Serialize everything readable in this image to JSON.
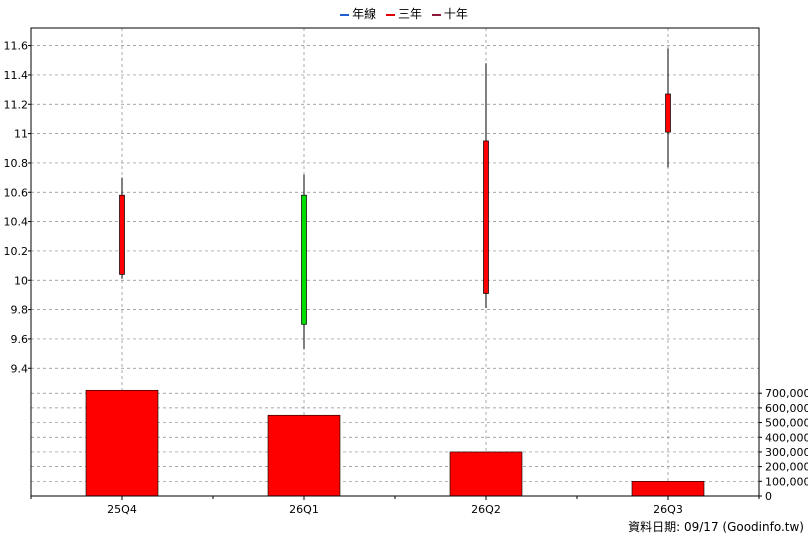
{
  "legend": [
    {
      "label": "年線",
      "color": "#1f5fd0"
    },
    {
      "label": "三年",
      "color": "#e00000"
    },
    {
      "label": "十年",
      "color": "#8b1a3a"
    }
  ],
  "source": "資料日期: 09/17  (Goodinfo.tw)",
  "colors": {
    "up": "#ff0000",
    "down": "#00dd00",
    "volume": "#ff0000",
    "grid": "#888888"
  },
  "chart_data": {
    "type": "candlestick",
    "categories": [
      "25Q4",
      "26Q1",
      "26Q2",
      "26Q3"
    ],
    "price_axis": {
      "range": [
        9.32,
        11.72
      ],
      "ticks": [
        9.4,
        9.6,
        9.8,
        10,
        10.2,
        10.4,
        10.6,
        10.8,
        11,
        11.2,
        11.4,
        11.6
      ],
      "tick_labels": [
        "9.4",
        "9.6",
        "9.8",
        "10",
        "10.2",
        "10.4",
        "10.6",
        "10.8",
        "11",
        "11.2",
        "11.4",
        "11.6"
      ]
    },
    "volume_axis": {
      "range": [
        0,
        790000
      ],
      "ticks": [
        0,
        100000,
        200000,
        300000,
        400000,
        500000,
        600000,
        700000
      ],
      "tick_labels": [
        "0",
        "100,000",
        "200,000",
        "300,000",
        "400,000",
        "500,000",
        "600,000",
        "700,000"
      ]
    },
    "candles": [
      {
        "x": "25Q4",
        "open": 10.04,
        "high": 10.7,
        "low": 10.01,
        "close": 10.58
      },
      {
        "x": "26Q1",
        "open": 10.58,
        "high": 10.72,
        "low": 9.53,
        "close": 9.7
      },
      {
        "x": "26Q2",
        "open": 9.91,
        "high": 11.48,
        "low": 9.81,
        "close": 10.95
      },
      {
        "x": "26Q3",
        "open": 11.01,
        "high": 11.58,
        "low": 10.77,
        "close": 11.27
      }
    ],
    "volume": [
      720000,
      550000,
      300000,
      100000
    ],
    "grid": true,
    "legend_position": "top-center"
  }
}
